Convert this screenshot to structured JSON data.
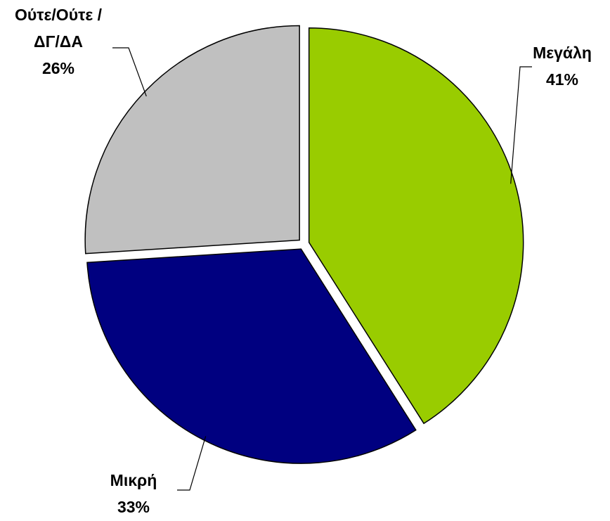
{
  "chart_data": {
    "type": "pie",
    "categories": [
      "Μεγάλη",
      "Μικρή",
      "Ούτε/Ούτε / ΔΓ/ΔΑ"
    ],
    "values": [
      41,
      33,
      26
    ],
    "value_labels": [
      "41%",
      "33%",
      "26%"
    ],
    "colors": [
      "#99cc00",
      "#000080",
      "#c0c0c0"
    ]
  }
}
